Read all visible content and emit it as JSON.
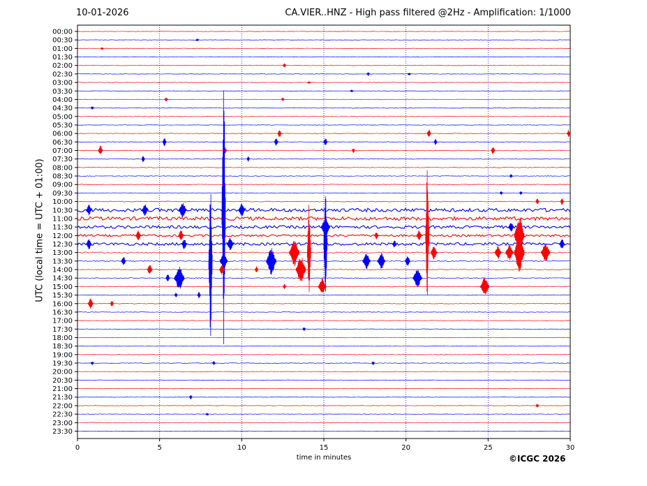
{
  "header": {
    "date": "10-01-2026",
    "title": "CA.VIER..HNZ - High pass filtered @2Hz - Amplification: 1/1000"
  },
  "footer": {
    "copyright": "©ICGC 2026"
  },
  "colors": {
    "odd_trace": "#ff0000",
    "even_trace": "#0000ff",
    "grid": "#0000ff",
    "axis": "#000000"
  },
  "chart_data": {
    "type": "line",
    "xlabel": "time in minutes",
    "ylabel": "UTC (local time = UTC + 01:00)",
    "xlim": [
      0,
      30
    ],
    "x_ticks": [
      0,
      5,
      10,
      15,
      20,
      25,
      30
    ],
    "grid": "vertical dotted at 5-minute intervals",
    "row_labels": [
      "00:00",
      "00:30",
      "01:00",
      "01:30",
      "02:00",
      "02:30",
      "03:00",
      "03:30",
      "04:00",
      "04:30",
      "05:00",
      "05:30",
      "06:00",
      "06:30",
      "07:00",
      "07:30",
      "08:00",
      "08:30",
      "09:00",
      "09:30",
      "10:00",
      "10:30",
      "11:00",
      "11:30",
      "12:00",
      "12:30",
      "13:00",
      "13:30",
      "14:00",
      "14:30",
      "15:00",
      "15:30",
      "16:00",
      "16:30",
      "17:00",
      "17:30",
      "18:00",
      "18:30",
      "19:00",
      "19:30",
      "20:00",
      "20:30",
      "21:00",
      "21:30",
      "22:00",
      "22:30",
      "23:00",
      "23:30"
    ],
    "row_colors": "alternating red (00:00, 01:00 …) and blue (00:30, 01:30 …)",
    "row_noise_levels": [
      0.3,
      0.3,
      0.3,
      0.3,
      0.3,
      0.3,
      0.3,
      0.3,
      0.4,
      0.4,
      0.3,
      0.3,
      0.4,
      0.5,
      0.5,
      0.4,
      0.4,
      0.4,
      0.4,
      0.4,
      0.6,
      2.5,
      2.5,
      2.0,
      1.5,
      2.0,
      0.8,
      0.8,
      0.6,
      0.6,
      0.5,
      0.4,
      0.5,
      0.4,
      0.3,
      0.3,
      0.3,
      0.3,
      0.3,
      0.4,
      0.3,
      0.3,
      0.3,
      0.3,
      0.3,
      0.3,
      0.3,
      0.3
    ],
    "events": [
      {
        "row": 1,
        "minute": 7.3,
        "amp": 2
      },
      {
        "row": 2,
        "minute": 1.5,
        "amp": 2
      },
      {
        "row": 4,
        "minute": 12.6,
        "amp": 4
      },
      {
        "row": 5,
        "minute": 17.7,
        "amp": 3
      },
      {
        "row": 5,
        "minute": 20.2,
        "amp": 2
      },
      {
        "row": 6,
        "minute": 14.1,
        "amp": 2
      },
      {
        "row": 7,
        "minute": 16.7,
        "amp": 2
      },
      {
        "row": 8,
        "minute": 5.4,
        "amp": 4
      },
      {
        "row": 8,
        "minute": 12.5,
        "amp": 3
      },
      {
        "row": 9,
        "minute": 0.9,
        "amp": 3
      },
      {
        "row": 12,
        "minute": 12.3,
        "amp": 6
      },
      {
        "row": 12,
        "minute": 21.4,
        "amp": 6
      },
      {
        "row": 12,
        "minute": 29.9,
        "amp": 5
      },
      {
        "row": 13,
        "minute": 5.3,
        "amp": 6
      },
      {
        "row": 13,
        "minute": 12.1,
        "amp": 6
      },
      {
        "row": 13,
        "minute": 15.1,
        "amp": 6
      },
      {
        "row": 13,
        "minute": 21.8,
        "amp": 5
      },
      {
        "row": 14,
        "minute": 1.4,
        "amp": 7
      },
      {
        "row": 14,
        "minute": 9.0,
        "amp": 5
      },
      {
        "row": 14,
        "minute": 16.8,
        "amp": 4
      },
      {
        "row": 14,
        "minute": 25.3,
        "amp": 6
      },
      {
        "row": 15,
        "minute": 4.0,
        "amp": 5
      },
      {
        "row": 15,
        "minute": 10.4,
        "amp": 4
      },
      {
        "row": 17,
        "minute": 26.4,
        "amp": 3
      },
      {
        "row": 19,
        "minute": 25.8,
        "amp": 3
      },
      {
        "row": 19,
        "minute": 27.0,
        "amp": 3
      },
      {
        "row": 20,
        "minute": 28.0,
        "amp": 5
      },
      {
        "row": 20,
        "minute": 29.5,
        "amp": 5
      },
      {
        "row": 21,
        "minute": 0.7,
        "amp": 8
      },
      {
        "row": 21,
        "minute": 4.1,
        "amp": 9
      },
      {
        "row": 21,
        "minute": 6.4,
        "amp": 12
      },
      {
        "row": 21,
        "minute": 10.0,
        "amp": 10
      },
      {
        "row": 21,
        "minute": 8.9,
        "amp": 210
      },
      {
        "row": 23,
        "minute": 15.1,
        "amp": 14
      },
      {
        "row": 23,
        "minute": 26.4,
        "amp": 8
      },
      {
        "row": 24,
        "minute": 3.7,
        "amp": 8
      },
      {
        "row": 24,
        "minute": 6.3,
        "amp": 8
      },
      {
        "row": 24,
        "minute": 18.2,
        "amp": 6
      },
      {
        "row": 24,
        "minute": 20.8,
        "amp": 8
      },
      {
        "row": 24,
        "minute": 21.3,
        "amp": 100
      },
      {
        "row": 24,
        "minute": 26.9,
        "amp": 30
      },
      {
        "row": 25,
        "minute": 0.7,
        "amp": 8
      },
      {
        "row": 25,
        "minute": 6.5,
        "amp": 8
      },
      {
        "row": 25,
        "minute": 9.3,
        "amp": 10
      },
      {
        "row": 25,
        "minute": 15.1,
        "amp": 80
      },
      {
        "row": 25,
        "minute": 19.3,
        "amp": 6
      },
      {
        "row": 25,
        "minute": 29.5,
        "amp": 8
      },
      {
        "row": 26,
        "minute": 13.2,
        "amp": 20
      },
      {
        "row": 26,
        "minute": 14.1,
        "amp": 70
      },
      {
        "row": 26,
        "minute": 21.7,
        "amp": 10
      },
      {
        "row": 26,
        "minute": 25.6,
        "amp": 10
      },
      {
        "row": 26,
        "minute": 26.3,
        "amp": 12
      },
      {
        "row": 26,
        "minute": 26.9,
        "amp": 30
      },
      {
        "row": 26,
        "minute": 28.5,
        "amp": 14
      },
      {
        "row": 27,
        "minute": 2.8,
        "amp": 7
      },
      {
        "row": 27,
        "minute": 8.1,
        "amp": 110
      },
      {
        "row": 27,
        "minute": 8.9,
        "amp": 12
      },
      {
        "row": 27,
        "minute": 11.8,
        "amp": 20
      },
      {
        "row": 27,
        "minute": 17.6,
        "amp": 12
      },
      {
        "row": 27,
        "minute": 18.5,
        "amp": 12
      },
      {
        "row": 27,
        "minute": 20.1,
        "amp": 8
      },
      {
        "row": 28,
        "minute": 4.4,
        "amp": 8
      },
      {
        "row": 28,
        "minute": 8.8,
        "amp": 8
      },
      {
        "row": 28,
        "minute": 10.9,
        "amp": 5
      },
      {
        "row": 28,
        "minute": 13.6,
        "amp": 20
      },
      {
        "row": 29,
        "minute": 5.5,
        "amp": 6
      },
      {
        "row": 29,
        "minute": 6.2,
        "amp": 18
      },
      {
        "row": 29,
        "minute": 20.7,
        "amp": 14
      },
      {
        "row": 30,
        "minute": 12.6,
        "amp": 4
      },
      {
        "row": 30,
        "minute": 14.9,
        "amp": 12
      },
      {
        "row": 30,
        "minute": 24.8,
        "amp": 14
      },
      {
        "row": 31,
        "minute": 6.0,
        "amp": 4
      },
      {
        "row": 31,
        "minute": 7.4,
        "amp": 5
      },
      {
        "row": 32,
        "minute": 0.8,
        "amp": 8
      },
      {
        "row": 32,
        "minute": 2.1,
        "amp": 5
      },
      {
        "row": 35,
        "minute": 13.8,
        "amp": 3
      },
      {
        "row": 39,
        "minute": 0.9,
        "amp": 3
      },
      {
        "row": 39,
        "minute": 8.3,
        "amp": 3
      },
      {
        "row": 39,
        "minute": 18.0,
        "amp": 3
      },
      {
        "row": 43,
        "minute": 6.9,
        "amp": 3
      },
      {
        "row": 44,
        "minute": 28.0,
        "amp": 3
      },
      {
        "row": 45,
        "minute": 7.9,
        "amp": 2
      }
    ]
  }
}
